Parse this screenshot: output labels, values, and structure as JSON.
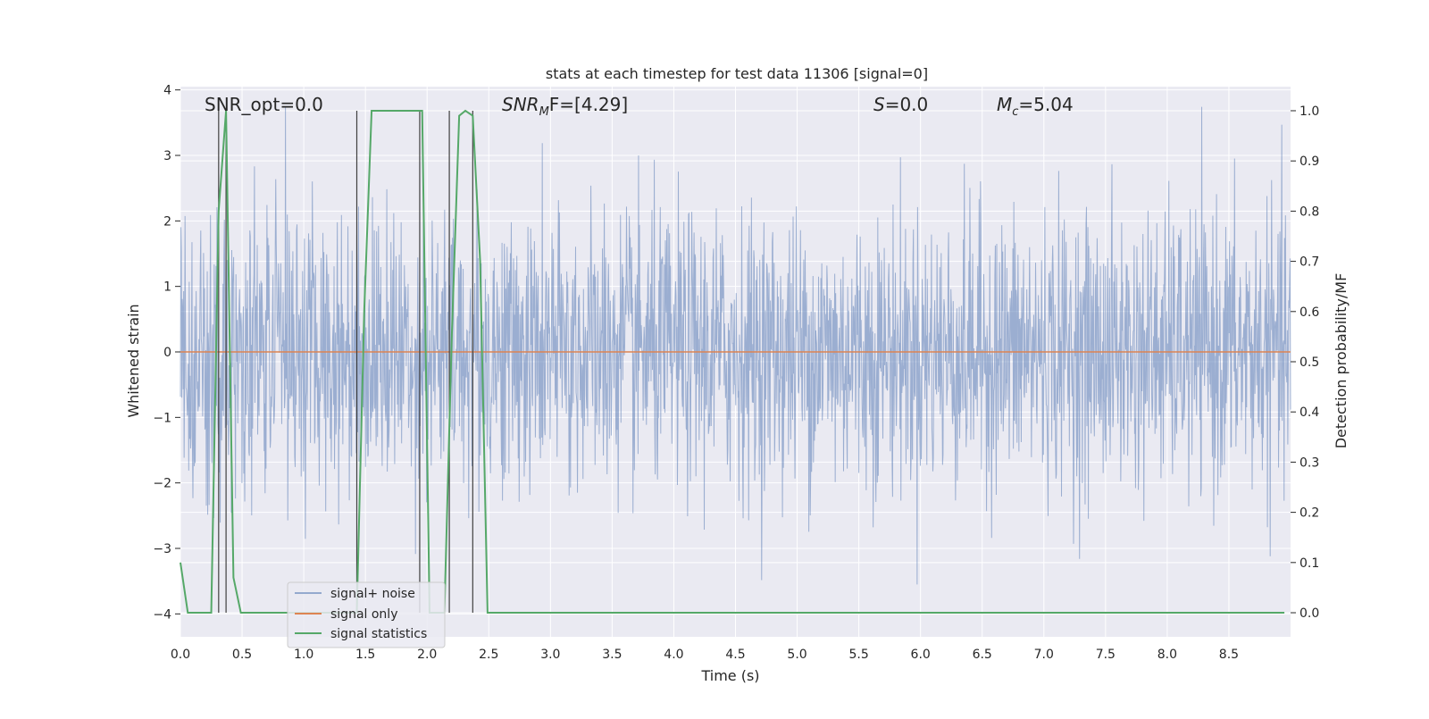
{
  "chart_data": {
    "type": "line",
    "title": "stats at each timestep for test data 11306 [signal=0]",
    "xlabel": "Time (s)",
    "ylabel": "Whitened strain",
    "y2label": "Detection probability/MF",
    "xlim": [
      0.0,
      9.0
    ],
    "ylim": [
      -4.35,
      4.05
    ],
    "y2lim": [
      -0.048,
      1.048
    ],
    "grid": true,
    "legend_position": "lower-left",
    "xticks": [
      "0.0",
      "0.5",
      "1.0",
      "1.5",
      "2.0",
      "2.5",
      "3.0",
      "3.5",
      "4.0",
      "4.5",
      "5.0",
      "5.5",
      "6.0",
      "6.5",
      "7.0",
      "7.5",
      "8.0",
      "8.5"
    ],
    "yticks": [
      "4",
      "3",
      "2",
      "1",
      "0",
      "−1",
      "−2",
      "−3",
      "−4"
    ],
    "y2ticks": [
      "1.0",
      "0.9",
      "0.8",
      "0.7",
      "0.6",
      "0.5",
      "0.4",
      "0.3",
      "0.2",
      "0.1",
      "0.0"
    ],
    "annotations": {
      "snr_opt": "SNR_opt=0.0",
      "snr_mf_main": "SNR",
      "snr_mf_sub": "M",
      "snr_mf_rest": "F=[4.29]",
      "s_stat_main": "S",
      "s_stat_rest": "=0.0",
      "mc_main": "M",
      "mc_sub": "c",
      "mc_rest": "=5.04"
    },
    "series": [
      {
        "name": "signal+ noise",
        "color": "#4c72b0",
        "description_range": [
          -3.7,
          3.7
        ]
      },
      {
        "name": "signal only",
        "color": "#dd8452",
        "values_constant": 0.0
      },
      {
        "name": "signal statistics",
        "color": "#55a868",
        "x": [
          0.0,
          0.06,
          0.12,
          0.25,
          0.31,
          0.37,
          0.43,
          0.49,
          0.55,
          1.43,
          1.49,
          1.55,
          1.9,
          1.96,
          2.02,
          2.08,
          2.14,
          2.2,
          2.26,
          2.31,
          2.37,
          2.43,
          2.49,
          2.55,
          8.95
        ],
        "values": [
          0.1,
          0.0,
          0.0,
          0.0,
          0.8,
          1.0,
          0.07,
          0.0,
          0.0,
          0.0,
          0.6,
          1.0,
          1.0,
          1.0,
          0.0,
          0.0,
          0.0,
          0.55,
          0.99,
          1.0,
          0.99,
          0.7,
          0.0,
          0.0,
          0.0
        ]
      }
    ],
    "vertical_lines_x": [
      0.31,
      0.37,
      1.43,
      1.94,
      2.18,
      2.37
    ]
  },
  "colors": {
    "plot_bg": "#eaeaf2",
    "grid": "#ffffff",
    "text": "#262626",
    "noise": "#4c72b0",
    "signal_only": "#dd8452",
    "stats": "#55a868",
    "vline": "#404040"
  }
}
